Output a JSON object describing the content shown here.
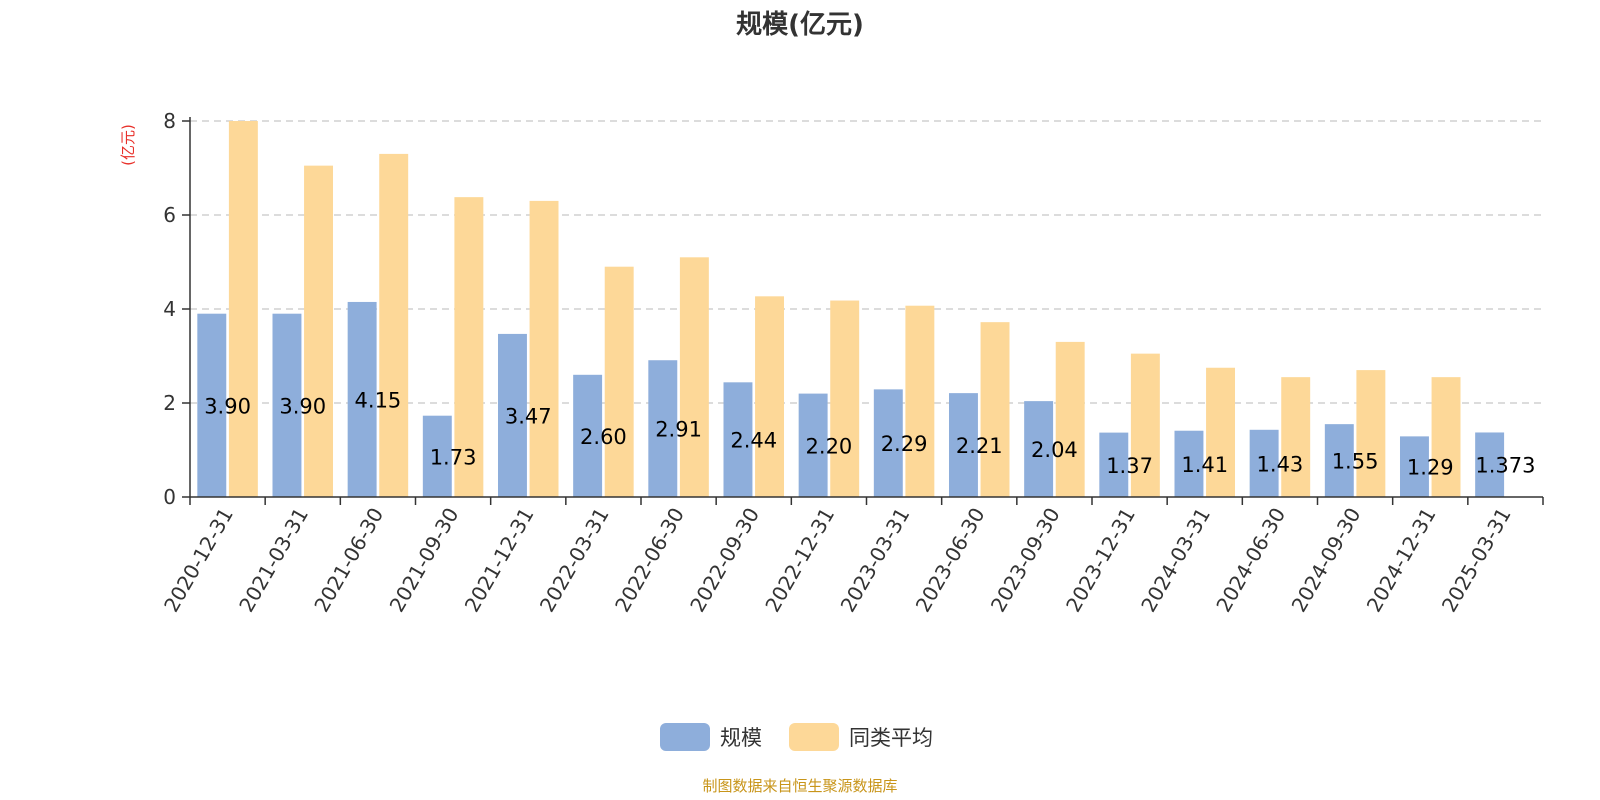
{
  "chart_data": {
    "type": "bar",
    "title": "规模(亿元)",
    "ylabel": "(亿元)",
    "ylim": [
      0,
      8
    ],
    "yticks": [
      "0",
      "2",
      "4",
      "6",
      "8"
    ],
    "grid": true,
    "legend_position": "bottom",
    "categories": [
      "2020-12-31",
      "2021-03-31",
      "2021-06-30",
      "2021-09-30",
      "2021-12-31",
      "2022-03-31",
      "2022-06-30",
      "2022-09-30",
      "2022-12-31",
      "2023-03-31",
      "2023-06-30",
      "2023-09-30",
      "2023-12-31",
      "2024-03-31",
      "2024-06-30",
      "2024-09-30",
      "2024-12-31",
      "2025-03-31"
    ],
    "series": [
      {
        "name": "规模",
        "color": "#8eaedb",
        "values": [
          3.9,
          3.9,
          4.15,
          1.73,
          3.47,
          2.6,
          2.91,
          2.44,
          2.2,
          2.29,
          2.21,
          2.04,
          1.37,
          1.41,
          1.43,
          1.55,
          1.29,
          1.373
        ],
        "labels": [
          "3.90",
          "3.90",
          "4.15",
          "1.73",
          "3.47",
          "2.60",
          "2.91",
          "2.44",
          "2.20",
          "2.29",
          "2.21",
          "2.04",
          "1.37",
          "1.41",
          "1.43",
          "1.55",
          "1.29",
          "1.373"
        ]
      },
      {
        "name": "同类平均",
        "color": "#fdd898",
        "values": [
          8.0,
          7.05,
          7.3,
          6.38,
          6.3,
          4.9,
          5.1,
          4.27,
          4.18,
          4.07,
          3.72,
          3.3,
          3.05,
          2.75,
          2.55,
          2.7,
          2.55,
          null
        ]
      }
    ]
  },
  "source_note": "制图数据来自恒生聚源数据库"
}
